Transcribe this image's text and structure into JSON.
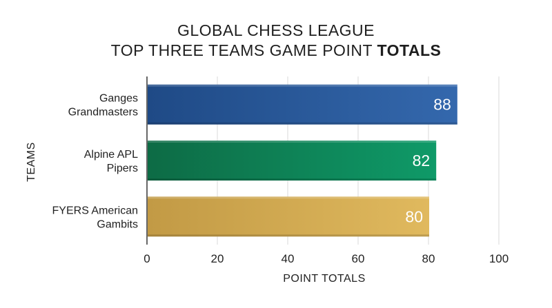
{
  "chart_data": {
    "type": "bar",
    "orientation": "horizontal",
    "title_line1": "GLOBAL CHESS LEAGUE",
    "title_line2_prefix": "TOP THREE TEAMS GAME POINT ",
    "title_line2_bold": "TOTALS",
    "xlabel": "POINT TOTALS",
    "ylabel": "TEAMS",
    "xlim": [
      0,
      100
    ],
    "xticks": [
      0,
      20,
      40,
      60,
      80,
      100
    ],
    "grid": true,
    "categories": [
      {
        "lines": [
          "Ganges",
          "Grandmasters"
        ],
        "value": 88,
        "label": "88",
        "color_dark": "#1f4a86",
        "color_light": "#3468ad"
      },
      {
        "lines": [
          "Alpine APL",
          "Pipers"
        ],
        "value": 82,
        "label": "82",
        "color_dark": "#0d6b45",
        "color_light": "#0f9a68"
      },
      {
        "lines": [
          "FYERS American",
          "Gambits"
        ],
        "value": 80,
        "label": "80",
        "color_dark": "#c29a45",
        "color_light": "#e0b95e"
      }
    ]
  }
}
